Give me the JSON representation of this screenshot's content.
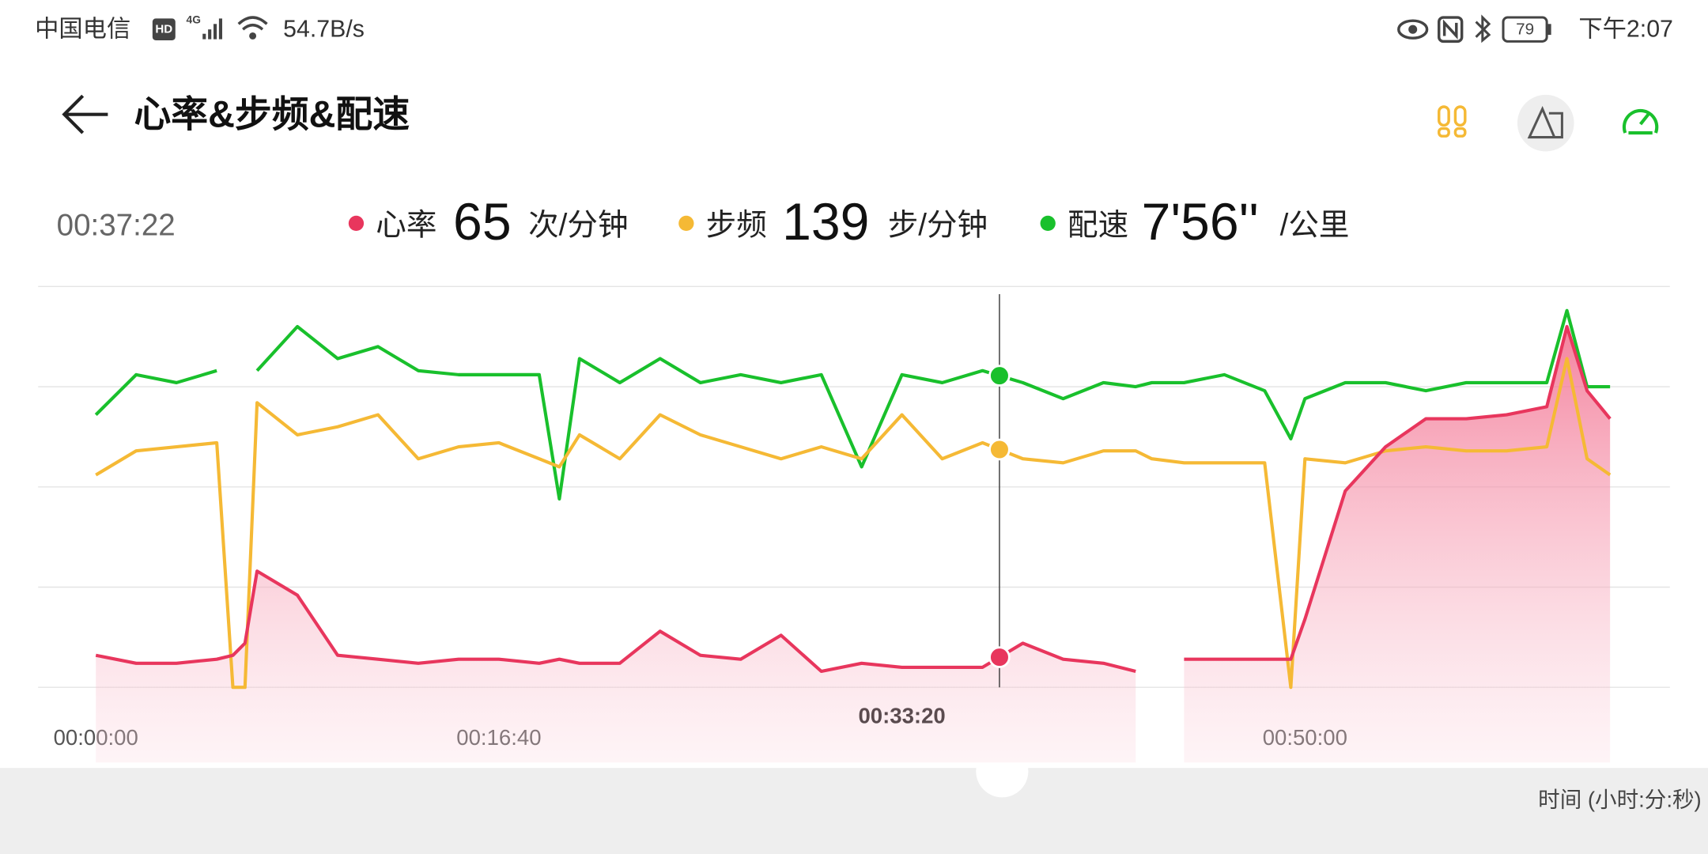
{
  "status_bar": {
    "carrier": "中国电信",
    "hd": "HD",
    "network": "4G",
    "speed": "54.7B/s",
    "battery": "79",
    "time": "下午2:07"
  },
  "header": {
    "title": "心率&步频&配速"
  },
  "readout": [
    {
      "value": "65",
      "unit": "次/分钟"
    },
    {
      "value": "139",
      "unit": "步/分钟"
    },
    {
      "value": "7'56''",
      "unit": "/公里"
    }
  ],
  "chart_data": {
    "type": "line",
    "xlabel": "时间 (小时:分:秒)",
    "cursor": {
      "value": 2242,
      "label": "00:37:22"
    },
    "xlim": [
      0,
      3757
    ],
    "xticks": [
      {
        "value": 0,
        "label": "00:00:00"
      },
      {
        "value": 1000,
        "label": "00:16:40"
      },
      {
        "value": 2000,
        "label": "00:33:20"
      },
      {
        "value": 3000,
        "label": "00:50:00"
      }
    ],
    "ylim": [
      0,
      100
    ],
    "yticks": [
      0,
      25,
      50,
      75,
      100
    ],
    "grid": true,
    "x": [
      0,
      100,
      200,
      300,
      340,
      370,
      400,
      500,
      600,
      700,
      800,
      900,
      1000,
      1100,
      1150,
      1200,
      1300,
      1400,
      1500,
      1600,
      1700,
      1800,
      1900,
      2000,
      2100,
      2200,
      2300,
      2400,
      2500,
      2580,
      2620,
      2700,
      2800,
      2900,
      2965,
      3000,
      3100,
      3200,
      3300,
      3400,
      3500,
      3600,
      3650,
      3700,
      3757
    ],
    "series": [
      {
        "name": "心率",
        "color": "#e8365d",
        "area": true,
        "values": [
          8,
          6,
          6,
          7,
          8,
          11,
          29,
          23,
          8,
          7,
          6,
          7,
          7,
          6,
          7,
          6,
          6,
          14,
          8,
          7,
          13,
          4,
          6,
          5,
          5,
          5,
          11,
          7,
          6,
          4,
          null,
          7,
          7,
          7,
          7,
          17,
          49,
          60,
          67,
          67,
          68,
          70,
          90,
          74,
          67
        ]
      },
      {
        "name": "步频",
        "color": "#f5b935",
        "values": [
          53,
          59,
          60,
          61,
          0,
          0,
          71,
          63,
          65,
          68,
          57,
          60,
          61,
          57,
          55,
          63,
          57,
          68,
          63,
          60,
          57,
          60,
          57,
          68,
          57,
          61,
          57,
          56,
          59,
          59,
          57,
          56,
          56,
          56,
          0,
          57,
          56,
          59,
          60,
          59,
          59,
          60,
          82,
          57,
          53
        ]
      },
      {
        "name": "配速",
        "color": "#19c02c",
        "values": [
          68,
          78,
          76,
          79,
          null,
          null,
          79,
          90,
          82,
          85,
          79,
          78,
          78,
          78,
          47,
          82,
          76,
          82,
          76,
          78,
          76,
          78,
          55,
          78,
          76,
          79,
          76,
          72,
          76,
          75,
          76,
          76,
          78,
          74,
          62,
          72,
          76,
          76,
          74,
          76,
          76,
          76,
          94,
          75,
          75
        ]
      }
    ]
  }
}
